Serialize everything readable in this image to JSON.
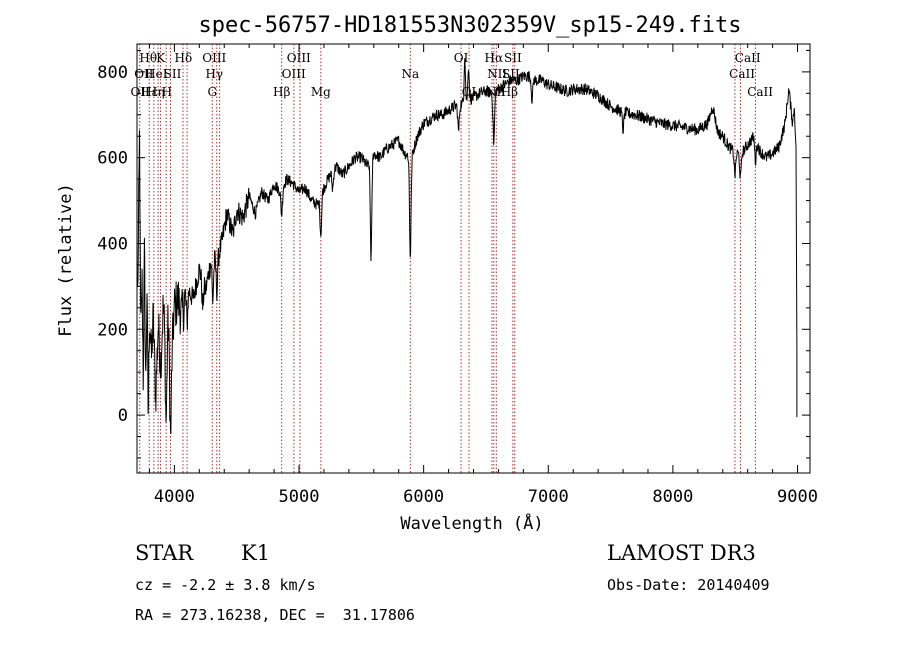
{
  "chart_data": {
    "type": "line",
    "title": "spec-56757-HD181553N302359V_sp15-249.fits",
    "xlabel": "Wavelength (Å)",
    "ylabel": "Flux (relative)",
    "xlim": [
      3700,
      9100
    ],
    "ylim": [
      -135,
      865
    ],
    "xticks": [
      4000,
      5000,
      6000,
      7000,
      8000,
      9000
    ],
    "yticks": [
      0,
      200,
      400,
      600,
      800
    ],
    "grid": false,
    "legend": "none",
    "colors": {
      "spectrum": "#000000",
      "lines": "#b03030"
    },
    "series": [
      {
        "anchors": [
          [
            3705,
            280
          ],
          [
            3720,
            560
          ],
          [
            3730,
            150
          ],
          [
            3740,
            330
          ],
          [
            3750,
            90
          ],
          [
            3760,
            400
          ],
          [
            3770,
            50
          ],
          [
            3780,
            300
          ],
          [
            3790,
            -20
          ],
          [
            3800,
            240
          ],
          [
            3815,
            130
          ],
          [
            3830,
            230
          ],
          [
            3850,
            40
          ],
          [
            3870,
            210
          ],
          [
            3890,
            120
          ],
          [
            3910,
            250
          ],
          [
            3930,
            180
          ],
          [
            3950,
            220
          ],
          [
            3970,
            90
          ],
          [
            4000,
            250
          ],
          [
            4030,
            270
          ],
          [
            4060,
            230
          ],
          [
            4100,
            300
          ],
          [
            4150,
            270
          ],
          [
            4200,
            340
          ],
          [
            4250,
            290
          ],
          [
            4300,
            370
          ],
          [
            4340,
            360
          ],
          [
            4380,
            400
          ],
          [
            4420,
            470
          ],
          [
            4470,
            420
          ],
          [
            4500,
            480
          ],
          [
            4550,
            460
          ],
          [
            4600,
            510
          ],
          [
            4650,
            470
          ],
          [
            4700,
            520
          ],
          [
            4750,
            500
          ],
          [
            4800,
            540
          ],
          [
            4850,
            520
          ],
          [
            4900,
            550
          ],
          [
            4950,
            540
          ],
          [
            5000,
            520
          ],
          [
            5050,
            530
          ],
          [
            5100,
            500
          ],
          [
            5150,
            490
          ],
          [
            5200,
            530
          ],
          [
            5250,
            560
          ],
          [
            5300,
            580
          ],
          [
            5350,
            560
          ],
          [
            5400,
            580
          ],
          [
            5450,
            600
          ],
          [
            5500,
            600
          ],
          [
            5550,
            580
          ],
          [
            5600,
            610
          ],
          [
            5650,
            600
          ],
          [
            5700,
            620
          ],
          [
            5750,
            630
          ],
          [
            5800,
            640
          ],
          [
            5850,
            610
          ],
          [
            5900,
            600
          ],
          [
            5950,
            650
          ],
          [
            6000,
            680
          ],
          [
            6050,
            690
          ],
          [
            6100,
            700
          ],
          [
            6150,
            700
          ],
          [
            6200,
            710
          ],
          [
            6250,
            720
          ],
          [
            6300,
            725
          ],
          [
            6350,
            735
          ],
          [
            6400,
            740
          ],
          [
            6450,
            750
          ],
          [
            6500,
            755
          ],
          [
            6550,
            750
          ],
          [
            6600,
            760
          ],
          [
            6650,
            770
          ],
          [
            6700,
            780
          ],
          [
            6750,
            780
          ],
          [
            6800,
            790
          ],
          [
            6850,
            790
          ],
          [
            6900,
            780
          ],
          [
            6950,
            780
          ],
          [
            7000,
            770
          ],
          [
            7050,
            765
          ],
          [
            7100,
            760
          ],
          [
            7150,
            755
          ],
          [
            7200,
            760
          ],
          [
            7300,
            760
          ],
          [
            7400,
            745
          ],
          [
            7500,
            720
          ],
          [
            7600,
            705
          ],
          [
            7700,
            700
          ],
          [
            7800,
            690
          ],
          [
            7900,
            680
          ],
          [
            8000,
            675
          ],
          [
            8100,
            670
          ],
          [
            8200,
            665
          ],
          [
            8280,
            680
          ],
          [
            8320,
            720
          ],
          [
            8360,
            660
          ],
          [
            8400,
            650
          ],
          [
            8450,
            625
          ],
          [
            8500,
            610
          ],
          [
            8550,
            610
          ],
          [
            8600,
            630
          ],
          [
            8650,
            650
          ],
          [
            8700,
            615
          ],
          [
            8750,
            600
          ],
          [
            8800,
            610
          ],
          [
            8850,
            625
          ],
          [
            8900,
            680
          ],
          [
            8930,
            760
          ],
          [
            8960,
            680
          ],
          [
            8975,
            720
          ],
          [
            8990,
            600
          ]
        ],
        "dips": [
          [
            3934,
            200
          ],
          [
            3969,
            150
          ],
          [
            4101,
            90
          ],
          [
            4227,
            60
          ],
          [
            4308,
            100
          ],
          [
            4341,
            70
          ],
          [
            4861,
            60
          ],
          [
            5175,
            90
          ],
          [
            5270,
            40
          ],
          [
            5578,
            230
          ],
          [
            5893,
            230
          ],
          [
            6280,
            60
          ],
          [
            6563,
            120
          ],
          [
            6870,
            50
          ],
          [
            7600,
            40
          ],
          [
            8498,
            50
          ],
          [
            8542,
            60
          ],
          [
            8662,
            50
          ]
        ],
        "spikes": [
          [
            6330,
            110
          ],
          [
            6360,
            80
          ],
          [
            3722,
            90
          ]
        ]
      }
    ],
    "lines": [
      {
        "x": 3722,
        "labels": [
          "Hθ",
          "OII"
        ]
      },
      {
        "x": 3798,
        "labels": [
          "Hθ",
          "OII"
        ]
      },
      {
        "x": 3835,
        "labels": [
          "Hε",
          "HeI",
          "OII"
        ]
      },
      {
        "x": 3869,
        "labels": [
          "Hη",
          "HeI"
        ]
      },
      {
        "x": 3889,
        "labels": [
          "K"
        ]
      },
      {
        "x": 3934,
        "labels": [
          "SII"
        ]
      },
      {
        "x": 3969,
        "labels": [
          "H"
        ]
      },
      {
        "x": 4069,
        "labels": [
          "SII"
        ]
      },
      {
        "x": 4102,
        "labels": [
          "Hδ"
        ]
      },
      {
        "x": 4304,
        "labels": [
          "G"
        ]
      },
      {
        "x": 4340,
        "labels": [
          "Hγ"
        ]
      },
      {
        "x": 4363,
        "labels": [
          "OIII"
        ]
      },
      {
        "x": 4861,
        "labels": [
          "Hβ"
        ]
      },
      {
        "x": 4959,
        "labels": [
          "OIII"
        ]
      },
      {
        "x": 5007,
        "labels": [
          "OIII"
        ]
      },
      {
        "x": 5175,
        "labels": [
          "Mg"
        ]
      },
      {
        "x": 5893,
        "labels": [
          "Na"
        ]
      },
      {
        "x": 6300,
        "labels": [
          "OI"
        ]
      },
      {
        "x": 6364,
        "labels": [
          "OI"
        ]
      },
      {
        "x": 6548,
        "labels": [
          "NII"
        ]
      },
      {
        "x": 6563,
        "labels": [
          "Hα"
        ]
      },
      {
        "x": 6583,
        "labels": [
          "NII"
        ]
      },
      {
        "x": 6716,
        "labels": [
          "SII"
        ]
      },
      {
        "x": 6731,
        "labels": [
          "SII"
        ]
      },
      {
        "x": 8498,
        "labels": [
          "CaII"
        ]
      },
      {
        "x": 8542,
        "labels": [
          "CaII"
        ]
      },
      {
        "x": 8662,
        "labels": [
          "CaII"
        ]
      }
    ]
  },
  "labels_display": {
    "top_row": [
      {
        "text": "Hθ",
        "x": 3790,
        "row": 0
      },
      {
        "text": "K",
        "x": 3890,
        "row": 0
      },
      {
        "text": "Hδ",
        "x": 4072,
        "row": 0
      },
      {
        "text": "OIII",
        "x": 4320,
        "row": 0
      },
      {
        "text": "OIII",
        "x": 4998,
        "row": 0
      },
      {
        "text": "OI",
        "x": 6300,
        "row": 0
      },
      {
        "text": "Hα",
        "x": 6563,
        "row": 0
      },
      {
        "text": "SII",
        "x": 6716,
        "row": 0
      },
      {
        "text": "CaII",
        "x": 8600,
        "row": 0
      },
      {
        "text": "OII",
        "x": 3755,
        "row": 1
      },
      {
        "text": "HeI",
        "x": 3855,
        "row": 1
      },
      {
        "text": "SII",
        "x": 3985,
        "row": 1
      },
      {
        "text": "Hγ",
        "x": 4320,
        "row": 1
      },
      {
        "text": "OIII",
        "x": 4957,
        "row": 1
      },
      {
        "text": "Na",
        "x": 5893,
        "row": 1
      },
      {
        "text": "NII",
        "x": 6590,
        "row": 1
      },
      {
        "text": "SII",
        "x": 6700,
        "row": 1
      },
      {
        "text": "CaII",
        "x": 8555,
        "row": 1
      },
      {
        "text": "OII",
        "x": 3725,
        "row": 2
      },
      {
        "text": "Hε",
        "x": 3800,
        "row": 2
      },
      {
        "text": "Hη",
        "x": 3850,
        "row": 2
      },
      {
        "text": "H",
        "x": 3940,
        "row": 2
      },
      {
        "text": "G",
        "x": 4304,
        "row": 2
      },
      {
        "text": "Hβ",
        "x": 4861,
        "row": 2
      },
      {
        "text": "Mg",
        "x": 5175,
        "row": 2
      },
      {
        "text": "OI",
        "x": 6364,
        "row": 2
      },
      {
        "text": "NII",
        "x": 6580,
        "row": 2
      },
      {
        "text": "Hβ",
        "x": 6688,
        "row": 2
      },
      {
        "text": "CaII",
        "x": 8700,
        "row": 2
      }
    ]
  },
  "info": {
    "object_class": "STAR",
    "subclass": "K1",
    "survey": "LAMOST DR3",
    "redshift": "cz = -2.2 ± 3.8 km/s",
    "obs_date": "Obs-Date: 20140409",
    "coords": "RA = 273.16238, DEC =  31.17806"
  }
}
